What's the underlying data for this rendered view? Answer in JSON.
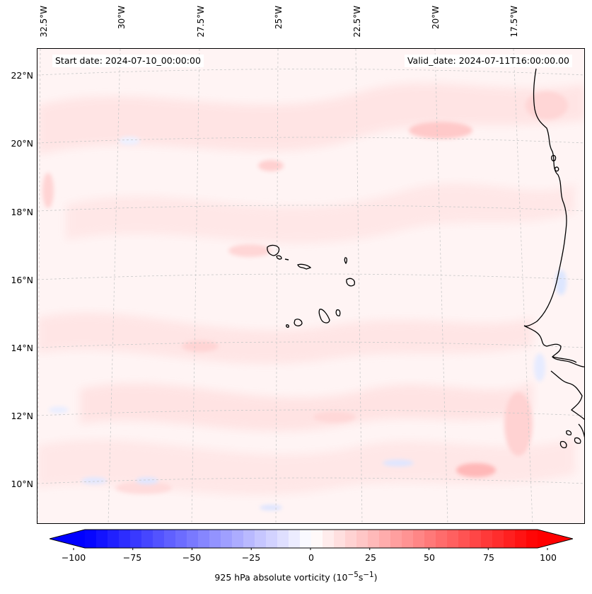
{
  "map": {
    "start_date": "Start date: 2024-07-10_00:00:00",
    "valid_date": "Valid_date: 2024-07-11T16:00:00.00",
    "longitude_labels": [
      "32.5°W",
      "30°W",
      "27.5°W",
      "25°W",
      "22.5°W",
      "20°W",
      "17.5°W"
    ],
    "latitude_labels": [
      "22°N",
      "20°N",
      "18°N",
      "16°N",
      "14°N",
      "12°N",
      "10°N"
    ],
    "field": "925 hPa absolute vorticity",
    "region": "Cabo Verde islands and West African coast",
    "colors": {
      "negative_max": "#0000ff",
      "neutral": "#ffffff",
      "positive_max": "#ff0000",
      "background_tint": "#fff5f5",
      "coastline": "#000000",
      "gridline": "#c8c8c8"
    }
  },
  "colorbar": {
    "ticks": [
      "−100",
      "−75",
      "−50",
      "−25",
      "0",
      "25",
      "50",
      "75",
      "100"
    ],
    "min": -100,
    "max": 100,
    "label_html": "925 hPa absolute vorticity (10<sup>−5</sup>s<sup>−1</sup>)"
  }
}
